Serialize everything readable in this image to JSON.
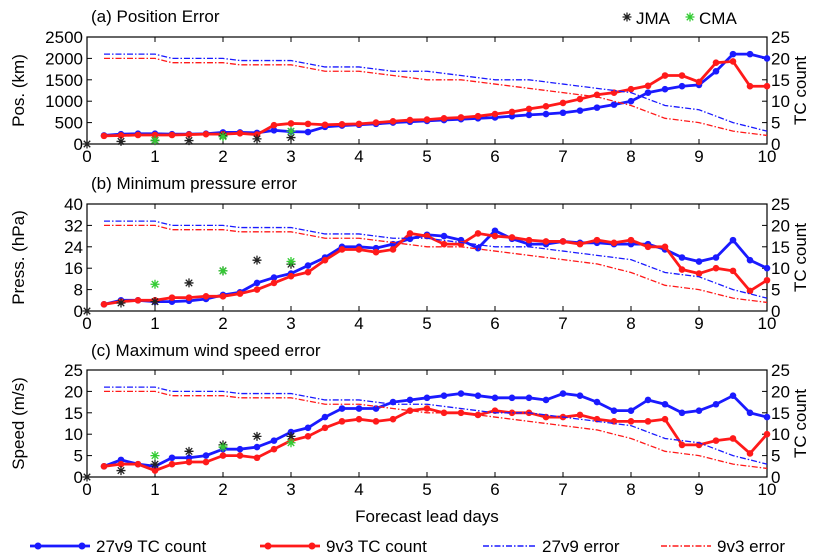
{
  "figure": {
    "xlabel": "Forecast lead days",
    "legend": [
      {
        "label": "27v9 TC count",
        "color": "#1a1aff",
        "style": "solid-marker"
      },
      {
        "label": "9v3 TC count",
        "color": "#ff1a1a",
        "style": "solid-marker"
      },
      {
        "label": "27v9 error",
        "color": "#1a1aff",
        "style": "dashdot"
      },
      {
        "label": "9v3 error",
        "color": "#ff1a1a",
        "style": "dashdot"
      }
    ],
    "colors": {
      "blue": "#1a1aff",
      "red": "#ff1a1a",
      "jma": "#222222",
      "cma": "#33cc33"
    }
  },
  "chart_data": [
    {
      "type": "line",
      "title": "(a) Position Error",
      "ylabel": "Pos. (km)",
      "y2label": "TC count",
      "xlim": [
        0,
        10
      ],
      "ylim": [
        0,
        2500
      ],
      "y2lim": [
        0,
        25
      ],
      "yticks": [
        0,
        500,
        1000,
        1500,
        2000,
        2500
      ],
      "y2ticks": [
        0,
        5,
        10,
        15,
        20,
        25
      ],
      "xticks": [
        0,
        1,
        2,
        3,
        4,
        5,
        6,
        7,
        8,
        9,
        10
      ],
      "markers_legend": [
        {
          "label": "JMA",
          "symbol": "*"
        },
        {
          "label": "CMA",
          "symbol": "*"
        }
      ],
      "series": [
        {
          "key": "blue_marker",
          "x": [
            0.25,
            0.5,
            0.75,
            1,
            1.25,
            1.5,
            1.75,
            2,
            2.25,
            2.5,
            2.75,
            3,
            3.25,
            3.5,
            3.75,
            4,
            4.25,
            4.5,
            4.75,
            5,
            5.25,
            5.5,
            5.75,
            6,
            6.25,
            6.5,
            6.75,
            7,
            7.25,
            7.5,
            7.75,
            8,
            8.25,
            8.5,
            8.75,
            9,
            9.25,
            9.5,
            9.75,
            10
          ],
          "values": [
            200,
            230,
            240,
            240,
            230,
            230,
            240,
            270,
            270,
            260,
            320,
            290,
            280,
            400,
            430,
            450,
            470,
            500,
            520,
            540,
            560,
            580,
            600,
            620,
            650,
            680,
            700,
            730,
            780,
            850,
            920,
            1000,
            1200,
            1280,
            1350,
            1380,
            1700,
            2100,
            2100,
            2000
          ]
        },
        {
          "key": "red_marker",
          "x": [
            0.25,
            0.5,
            0.75,
            1,
            1.25,
            1.5,
            1.75,
            2,
            2.25,
            2.5,
            2.75,
            3,
            3.25,
            3.5,
            3.75,
            4,
            4.25,
            4.5,
            4.75,
            5,
            5.25,
            5.5,
            5.75,
            6,
            6.25,
            6.5,
            6.75,
            7,
            7.25,
            7.5,
            7.75,
            8,
            8.25,
            8.5,
            8.75,
            9,
            9.25,
            9.5,
            9.75,
            10
          ],
          "values": [
            190,
            200,
            210,
            210,
            210,
            220,
            230,
            230,
            250,
            220,
            440,
            480,
            470,
            450,
            460,
            470,
            500,
            530,
            560,
            570,
            600,
            620,
            650,
            700,
            750,
            820,
            880,
            960,
            1050,
            1150,
            1200,
            1280,
            1360,
            1600,
            1600,
            1450,
            1900,
            1930,
            1350,
            1350
          ]
        },
        {
          "key": "blue_dash",
          "x": [
            0.25,
            1,
            1.25,
            2,
            2.25,
            3,
            3.5,
            4,
            4.5,
            5,
            5.5,
            6,
            6.5,
            7,
            7.5,
            8,
            8.5,
            9,
            9.5,
            10
          ],
          "values": [
            21,
            21,
            20,
            20,
            19.5,
            19.5,
            18,
            18,
            17,
            17,
            16,
            15,
            15,
            14,
            13,
            12,
            9,
            8,
            5,
            3
          ]
        },
        {
          "key": "red_dash",
          "x": [
            0.25,
            1,
            1.25,
            2,
            2.25,
            3,
            3.5,
            4,
            4.5,
            5,
            5.5,
            6,
            6.5,
            7,
            7.5,
            8,
            8.5,
            9,
            9.5,
            10
          ],
          "values": [
            20,
            20,
            19,
            19,
            18.5,
            18.5,
            17,
            17,
            16,
            15,
            15,
            14,
            13,
            12,
            11,
            9,
            6,
            5,
            3,
            2
          ]
        },
        {
          "key": "jma",
          "x": [
            0,
            0.5,
            1,
            1.5,
            2,
            2.5,
            3
          ],
          "values": [
            0,
            60,
            80,
            80,
            190,
            120,
            150
          ]
        },
        {
          "key": "cma",
          "x": [
            1,
            2,
            3
          ],
          "values": [
            90,
            170,
            300
          ]
        }
      ]
    },
    {
      "type": "line",
      "title": "(b) Minimum pressure error",
      "ylabel": "Press. (hPa)",
      "y2label": "TC count",
      "xlim": [
        0,
        10
      ],
      "ylim": [
        0,
        40
      ],
      "y2lim": [
        0,
        25
      ],
      "yticks": [
        0,
        8,
        16,
        24,
        32,
        40
      ],
      "y2ticks": [
        0,
        5,
        10,
        15,
        20,
        25
      ],
      "xticks": [
        0,
        1,
        2,
        3,
        4,
        5,
        6,
        7,
        8,
        9,
        10
      ],
      "series": [
        {
          "key": "blue_marker",
          "x": [
            0.25,
            0.5,
            0.75,
            1,
            1.25,
            1.5,
            1.75,
            2,
            2.25,
            2.5,
            2.75,
            3,
            3.25,
            3.5,
            3.75,
            4,
            4.25,
            4.5,
            4.75,
            5,
            5.25,
            5.5,
            5.75,
            6,
            6.25,
            6.5,
            6.75,
            7,
            7.25,
            7.5,
            7.75,
            8,
            8.25,
            8.5,
            8.75,
            9,
            9.25,
            9.5,
            9.75,
            10
          ],
          "values": [
            2.5,
            4,
            4,
            3.5,
            3.5,
            3.8,
            4.5,
            6,
            7,
            10.5,
            12.5,
            14,
            17,
            20,
            24,
            24,
            23.5,
            25,
            27,
            28.5,
            28,
            26.5,
            23.5,
            30,
            27,
            25,
            25,
            26,
            25.5,
            25.5,
            25,
            25,
            25,
            23,
            20,
            18.5,
            20,
            26.5,
            19,
            16
          ]
        },
        {
          "key": "red_marker",
          "x": [
            0.25,
            0.5,
            0.75,
            1,
            1.25,
            1.5,
            1.75,
            2,
            2.25,
            2.5,
            2.75,
            3,
            3.25,
            3.5,
            3.75,
            4,
            4.25,
            4.5,
            4.75,
            5,
            5.25,
            5.5,
            5.75,
            6,
            6.25,
            6.5,
            6.75,
            7,
            7.25,
            7.5,
            7.75,
            8,
            8.25,
            8.5,
            8.75,
            9,
            9.25,
            9.5,
            9.75,
            10
          ],
          "values": [
            2.5,
            3.5,
            4,
            4,
            5,
            5,
            5.5,
            5.5,
            6.5,
            8,
            10.5,
            13,
            14.5,
            19,
            23,
            23,
            22,
            23,
            29,
            28,
            25,
            25,
            29,
            28,
            27.5,
            26.5,
            26,
            26,
            25,
            26.5,
            25.5,
            26.5,
            24,
            24,
            15.5,
            14,
            16,
            15,
            7.5,
            11.5
          ]
        },
        {
          "key": "blue_dash",
          "x": [
            0.25,
            1,
            1.25,
            2,
            2.25,
            3,
            3.5,
            4,
            4.5,
            5,
            5.5,
            6,
            6.5,
            7,
            7.5,
            8,
            8.5,
            9,
            9.5,
            10
          ],
          "values": [
            21,
            21,
            20,
            20,
            19.5,
            19.5,
            18,
            18,
            17,
            17,
            16,
            15,
            15,
            14,
            13,
            12,
            9,
            8,
            5,
            3
          ]
        },
        {
          "key": "red_dash",
          "x": [
            0.25,
            1,
            1.25,
            2,
            2.25,
            3,
            3.5,
            4,
            4.5,
            5,
            5.5,
            6,
            6.5,
            7,
            7.5,
            8,
            8.5,
            9,
            9.5,
            10
          ],
          "values": [
            20,
            20,
            19,
            19,
            18.5,
            18.5,
            17,
            17,
            16,
            15,
            15,
            14,
            13,
            12,
            11,
            9,
            6,
            5,
            3,
            2
          ]
        },
        {
          "key": "jma",
          "x": [
            0,
            0.5,
            1,
            1.5,
            2,
            2.5,
            3
          ],
          "values": [
            0,
            3,
            3.5,
            10.5,
            15,
            19,
            17.5
          ]
        },
        {
          "key": "cma",
          "x": [
            1,
            2,
            3
          ],
          "values": [
            10,
            15,
            18.5
          ]
        }
      ]
    },
    {
      "type": "line",
      "title": "(c) Maximum wind speed error",
      "ylabel": "Speed (m/s)",
      "y2label": "TC count",
      "xlim": [
        0,
        10
      ],
      "ylim": [
        0,
        25
      ],
      "y2lim": [
        0,
        25
      ],
      "yticks": [
        0,
        5,
        10,
        15,
        20,
        25
      ],
      "y2ticks": [
        0,
        5,
        10,
        15,
        20,
        25
      ],
      "xticks": [
        0,
        1,
        2,
        3,
        4,
        5,
        6,
        7,
        8,
        9,
        10
      ],
      "series": [
        {
          "key": "blue_marker",
          "x": [
            0.25,
            0.5,
            0.75,
            1,
            1.25,
            1.5,
            1.75,
            2,
            2.25,
            2.5,
            2.75,
            3,
            3.25,
            3.5,
            3.75,
            4,
            4.25,
            4.5,
            4.75,
            5,
            5.25,
            5.5,
            5.75,
            6,
            6.25,
            6.5,
            6.75,
            7,
            7.25,
            7.5,
            7.75,
            8,
            8.25,
            8.5,
            8.75,
            9,
            9.25,
            9.5,
            9.75,
            10
          ],
          "values": [
            2.5,
            4,
            3,
            2.5,
            4.5,
            4.5,
            5,
            6.5,
            6.5,
            7,
            8.5,
            10.5,
            11.5,
            14,
            16,
            16,
            16,
            17.5,
            18,
            18.5,
            19,
            19.5,
            19,
            18.5,
            18.5,
            18.5,
            18,
            19.5,
            19,
            17.5,
            15.5,
            15.5,
            18,
            17,
            15,
            15.5,
            17,
            19,
            15,
            14
          ]
        },
        {
          "key": "red_marker",
          "x": [
            0.25,
            0.5,
            0.75,
            1,
            1.25,
            1.5,
            1.75,
            2,
            2.25,
            2.5,
            2.75,
            3,
            3.25,
            3.5,
            3.75,
            4,
            4.25,
            4.5,
            4.75,
            5,
            5.25,
            5.5,
            5.75,
            6,
            6.25,
            6.5,
            6.75,
            7,
            7.25,
            7.5,
            7.75,
            8,
            8.25,
            8.5,
            8.75,
            9,
            9.25,
            9.5,
            9.75,
            10
          ],
          "values": [
            2.5,
            3,
            3,
            1.5,
            3,
            3.5,
            3.5,
            5,
            5,
            4.5,
            6.5,
            8.5,
            9.5,
            11.5,
            13,
            13.5,
            13,
            13.5,
            15.5,
            16,
            15,
            15,
            14.5,
            15.5,
            15,
            15,
            14,
            14,
            14.5,
            13.5,
            13,
            13,
            13,
            13.5,
            7.5,
            7.5,
            8.5,
            9,
            5.5,
            10
          ]
        },
        {
          "key": "blue_dash",
          "x": [
            0.25,
            1,
            1.25,
            2,
            2.25,
            3,
            3.5,
            4,
            4.5,
            5,
            5.5,
            6,
            6.5,
            7,
            7.5,
            8,
            8.5,
            9,
            9.5,
            10
          ],
          "values": [
            21,
            21,
            20,
            20,
            19.5,
            19.5,
            18,
            18,
            17,
            17,
            16,
            15,
            15,
            14,
            13,
            12,
            9,
            8,
            5,
            3
          ]
        },
        {
          "key": "red_dash",
          "x": [
            0.25,
            1,
            1.25,
            2,
            2.25,
            3,
            3.5,
            4,
            4.5,
            5,
            5.5,
            6,
            6.5,
            7,
            7.5,
            8,
            8.5,
            9,
            9.5,
            10
          ],
          "values": [
            20,
            20,
            19,
            19,
            18.5,
            18.5,
            17,
            17,
            16,
            15,
            15,
            14,
            13,
            12,
            11,
            9,
            6,
            5,
            3,
            2
          ]
        },
        {
          "key": "jma",
          "x": [
            0,
            0.5,
            1,
            1.5,
            2,
            2.5,
            3
          ],
          "values": [
            0,
            1.5,
            3,
            6,
            7.5,
            9.5,
            9.5
          ]
        },
        {
          "key": "cma",
          "x": [
            1,
            2,
            3
          ],
          "values": [
            5,
            7,
            8
          ]
        }
      ]
    }
  ]
}
